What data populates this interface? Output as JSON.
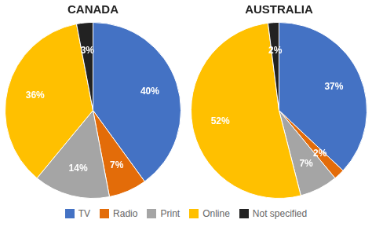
{
  "chart_data": [
    {
      "type": "pie",
      "title": "CANADA",
      "categories": [
        "TV",
        "Radio",
        "Print",
        "Online",
        "Not specified"
      ],
      "values": [
        40,
        7,
        14,
        36,
        3
      ],
      "value_labels": [
        "40%",
        "7%",
        "14%",
        "36%",
        "3%"
      ],
      "colors": [
        "#4472C4",
        "#E36C09",
        "#A5A5A5",
        "#FFC000",
        "#222222"
      ],
      "data_labels": true,
      "legend": "bottom"
    },
    {
      "type": "pie",
      "title": "AUSTRALIA",
      "categories": [
        "TV",
        "Radio",
        "Print",
        "Online",
        "Not specified"
      ],
      "values": [
        37,
        2,
        7,
        52,
        2
      ],
      "value_labels": [
        "37%",
        "2%",
        "7%",
        "52%",
        "2%"
      ],
      "colors": [
        "#4472C4",
        "#E36C09",
        "#A5A5A5",
        "#FFC000",
        "#222222"
      ],
      "data_labels": true,
      "legend": "bottom"
    }
  ]
}
